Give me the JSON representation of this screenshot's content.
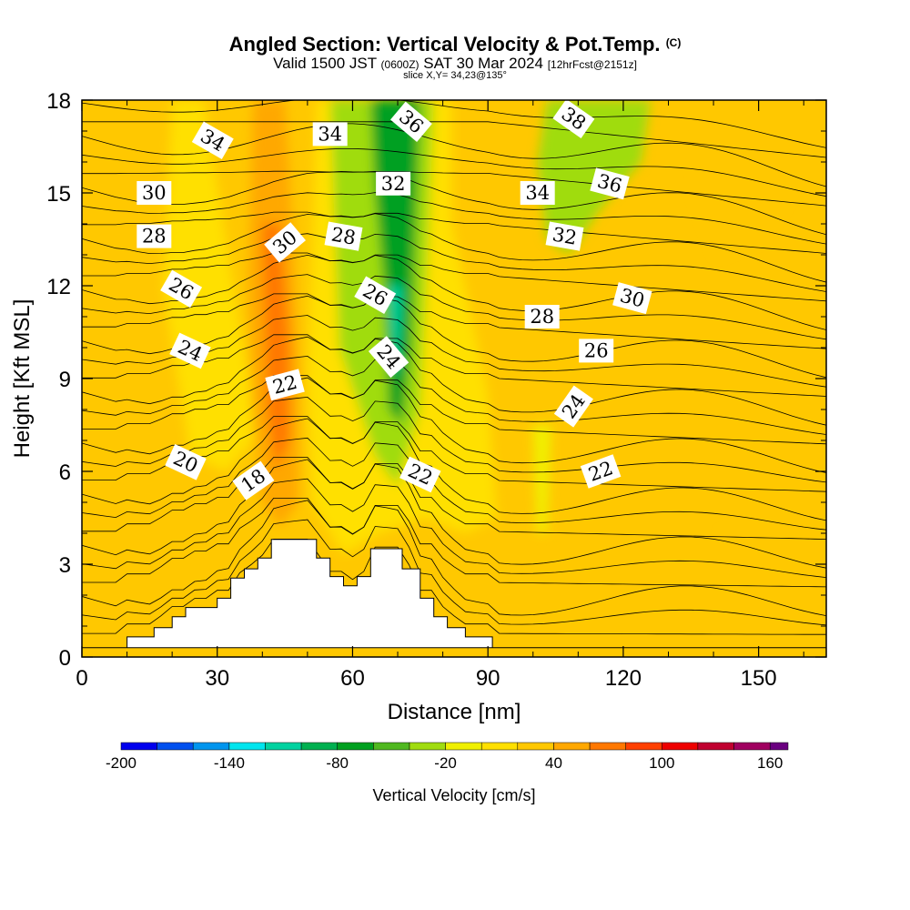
{
  "header": {
    "title": "Angled Section: Vertical Velocity & Pot.Temp.",
    "copyright": "(C)",
    "valid_prefix": "Valid 1500 JST",
    "utc": "(0600Z)",
    "valid_date": "SAT 30 Mar 2024",
    "forecast": "[12hrFcst@2151z]",
    "slice": "slice X,Y= 34,23@135°"
  },
  "chart_data": {
    "type": "heatmap",
    "xlabel": "Distance [nm]",
    "ylabel": "Height [Kft MSL]",
    "xlim": [
      0,
      165
    ],
    "ylim": [
      0,
      18
    ],
    "x_ticks": [
      "0",
      "30",
      "60",
      "90",
      "120",
      "150"
    ],
    "y_ticks": [
      "0",
      "3",
      "6",
      "9",
      "12",
      "15",
      "18"
    ],
    "colorbar": {
      "title": "Vertical Velocity [cm/s]",
      "range": [
        -200,
        170
      ],
      "levels": [
        -200,
        -180,
        -160,
        -140,
        -120,
        -100,
        -80,
        -60,
        -40,
        -20,
        0,
        20,
        40,
        60,
        80,
        100,
        120,
        140,
        160,
        170
      ],
      "tick_labels": [
        "-200",
        "-140",
        "-80",
        "-20",
        "40",
        "100",
        "160"
      ],
      "colors": [
        "#0000ee",
        "#0050ee",
        "#0095ee",
        "#00e5ee",
        "#00d2a0",
        "#00b050",
        "#00a020",
        "#50b820",
        "#a0dc10",
        "#f0f000",
        "#ffe000",
        "#ffc800",
        "#ffa800",
        "#ff7800",
        "#ff4000",
        "#ee0000",
        "#c00030",
        "#a00060",
        "#6a0080"
      ]
    },
    "terrain": [
      [
        0,
        0.3
      ],
      [
        10,
        0.3
      ],
      [
        10,
        0.65
      ],
      [
        16,
        0.65
      ],
      [
        16,
        0.95
      ],
      [
        20,
        0.95
      ],
      [
        20,
        1.3
      ],
      [
        23,
        1.3
      ],
      [
        23,
        1.6
      ],
      [
        30,
        1.6
      ],
      [
        30,
        1.9
      ],
      [
        33,
        1.9
      ],
      [
        33,
        2.55
      ],
      [
        36,
        2.55
      ],
      [
        36,
        2.85
      ],
      [
        39,
        2.85
      ],
      [
        39,
        3.2
      ],
      [
        42,
        3.2
      ],
      [
        42,
        3.8
      ],
      [
        52,
        3.8
      ],
      [
        52,
        3.2
      ],
      [
        55,
        3.2
      ],
      [
        55,
        2.6
      ],
      [
        58,
        2.6
      ],
      [
        58,
        2.3
      ],
      [
        61,
        2.3
      ],
      [
        61,
        2.6
      ],
      [
        64,
        2.6
      ],
      [
        64,
        3.5
      ],
      [
        71,
        3.5
      ],
      [
        71,
        2.85
      ],
      [
        75,
        2.85
      ],
      [
        75,
        1.9
      ],
      [
        78,
        1.9
      ],
      [
        78,
        1.3
      ],
      [
        81,
        1.3
      ],
      [
        81,
        0.95
      ],
      [
        85,
        0.95
      ],
      [
        85,
        0.65
      ],
      [
        91,
        0.65
      ],
      [
        91,
        0.3
      ],
      [
        165,
        0.3
      ]
    ],
    "updraft_bands": [
      {
        "points": [
          [
            20,
            18
          ],
          [
            27,
            18
          ],
          [
            33,
            12.5
          ],
          [
            37,
            9
          ],
          [
            38,
            7
          ],
          [
            32,
            6
          ],
          [
            24,
            6.5
          ],
          [
            18,
            12
          ]
        ],
        "value": 0
      },
      {
        "points": [
          [
            38,
            18
          ],
          [
            45,
            18
          ],
          [
            47,
            13
          ],
          [
            48,
            9
          ],
          [
            48,
            5
          ],
          [
            44,
            4.2
          ],
          [
            40,
            5
          ],
          [
            38,
            8
          ],
          [
            37,
            12
          ]
        ],
        "value": 50
      },
      {
        "points": [
          [
            40,
            14
          ],
          [
            44,
            14
          ],
          [
            46,
            10
          ],
          [
            46,
            7
          ],
          [
            43,
            6
          ],
          [
            41,
            8
          ]
        ],
        "value": 70
      },
      {
        "points": [
          [
            52,
            18
          ],
          [
            82,
            18
          ],
          [
            82,
            14
          ],
          [
            90,
            8.5
          ],
          [
            92,
            4.5
          ],
          [
            85,
            4
          ],
          [
            76,
            4.5
          ],
          [
            66,
            4
          ],
          [
            58,
            3.3
          ],
          [
            51,
            5
          ],
          [
            50,
            9
          ],
          [
            51,
            13
          ]
        ],
        "value": 0
      },
      {
        "points": [
          [
            55,
            18
          ],
          [
            78,
            18
          ],
          [
            77,
            14
          ],
          [
            76,
            11
          ],
          [
            75,
            8
          ],
          [
            72,
            6.5
          ],
          [
            70,
            5.5
          ],
          [
            65,
            6.5
          ],
          [
            57,
            10
          ],
          [
            56,
            14
          ]
        ],
        "value": -30
      },
      {
        "points": [
          [
            64,
            18
          ],
          [
            75,
            18
          ],
          [
            74,
            14
          ],
          [
            73,
            10
          ],
          [
            71,
            7.5
          ],
          [
            68,
            8
          ],
          [
            67,
            12
          ],
          [
            65,
            15
          ]
        ],
        "value": -70
      },
      {
        "points": [
          [
            68,
            12
          ],
          [
            71,
            12
          ],
          [
            70,
            9
          ],
          [
            69,
            9.5
          ]
        ],
        "value": -110
      },
      {
        "points": [
          [
            103,
            18
          ],
          [
            126,
            18
          ],
          [
            124,
            16
          ],
          [
            115,
            14.5
          ],
          [
            108,
            13
          ],
          [
            103,
            13.5
          ],
          [
            101,
            16
          ]
        ],
        "value": -30
      },
      {
        "points": [
          [
            100,
            7.5
          ],
          [
            104,
            7.5
          ],
          [
            103,
            4
          ],
          [
            101,
            4
          ]
        ],
        "value": -10
      },
      {
        "points": [
          [
            138,
            18
          ],
          [
            158,
            18
          ],
          [
            157,
            15
          ],
          [
            150,
            13.5
          ],
          [
            141,
            13
          ],
          [
            136,
            15
          ]
        ],
        "value": 30
      },
      {
        "points": [
          [
            142,
            4
          ],
          [
            165,
            4
          ],
          [
            165,
            0.3
          ],
          [
            142,
            0.3
          ]
        ],
        "value": 20
      }
    ],
    "isentrope_labels": [
      {
        "text": "34",
        "x": 29,
        "y": 16.7,
        "angle": 30
      },
      {
        "text": "34",
        "x": 55,
        "y": 16.9,
        "angle": 0
      },
      {
        "text": "36",
        "x": 73,
        "y": 17.3,
        "angle": 40
      },
      {
        "text": "38",
        "x": 109,
        "y": 17.4,
        "angle": 35
      },
      {
        "text": "30",
        "x": 16,
        "y": 15.0,
        "angle": 0
      },
      {
        "text": "32",
        "x": 69,
        "y": 15.3,
        "angle": 0
      },
      {
        "text": "34",
        "x": 101,
        "y": 15.0,
        "angle": 0
      },
      {
        "text": "36",
        "x": 117,
        "y": 15.3,
        "angle": 15
      },
      {
        "text": "28",
        "x": 16,
        "y": 13.6,
        "angle": 0
      },
      {
        "text": "30",
        "x": 45,
        "y": 13.4,
        "angle": -40
      },
      {
        "text": "28",
        "x": 58,
        "y": 13.6,
        "angle": 10
      },
      {
        "text": "32",
        "x": 107,
        "y": 13.6,
        "angle": 10
      },
      {
        "text": "26",
        "x": 22,
        "y": 11.9,
        "angle": 30
      },
      {
        "text": "26",
        "x": 65,
        "y": 11.7,
        "angle": 30
      },
      {
        "text": "30",
        "x": 122,
        "y": 11.6,
        "angle": 15
      },
      {
        "text": "28",
        "x": 102,
        "y": 11.0,
        "angle": 0
      },
      {
        "text": "24",
        "x": 24,
        "y": 9.9,
        "angle": 25
      },
      {
        "text": "24",
        "x": 68,
        "y": 9.7,
        "angle": 50
      },
      {
        "text": "26",
        "x": 114,
        "y": 9.9,
        "angle": 0
      },
      {
        "text": "22",
        "x": 45,
        "y": 8.8,
        "angle": -15
      },
      {
        "text": "24",
        "x": 109,
        "y": 8.1,
        "angle": -55
      },
      {
        "text": "20",
        "x": 23,
        "y": 6.3,
        "angle": 25
      },
      {
        "text": "18",
        "x": 38,
        "y": 5.7,
        "angle": -35
      },
      {
        "text": "22",
        "x": 75,
        "y": 5.9,
        "angle": 25
      },
      {
        "text": "22",
        "x": 115,
        "y": 6.0,
        "angle": -20
      }
    ]
  }
}
